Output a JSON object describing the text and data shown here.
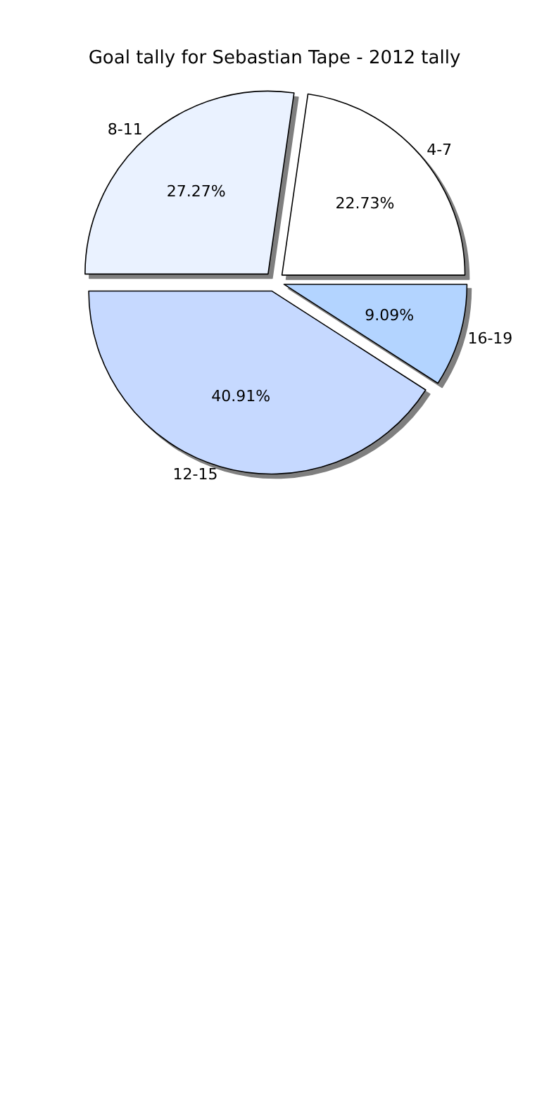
{
  "chart_data": {
    "type": "pie",
    "title": "Goal tally for Sebastian Tape - 2012 tally",
    "categories": [
      "4-7",
      "8-11",
      "12-15",
      "16-19"
    ],
    "values": [
      22.73,
      27.27,
      40.91,
      9.09
    ],
    "colors": [
      "#ffffff",
      "#eaf2ff",
      "#c6d9ff",
      "#b3d4ff"
    ],
    "value_labels": [
      "22.73%",
      "27.27%",
      "40.91%",
      "9.09%"
    ],
    "legend": false
  }
}
